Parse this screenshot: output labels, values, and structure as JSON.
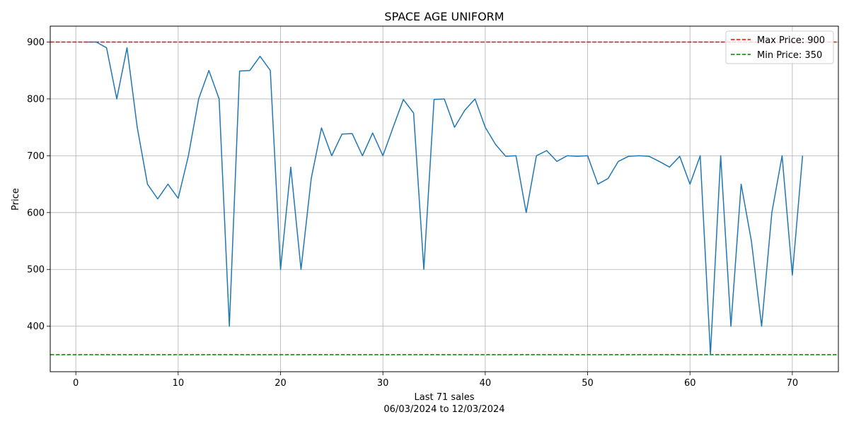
{
  "chart_data": {
    "type": "line",
    "title": "SPACE AGE UNIFORM",
    "xlabel_line1": "Last 71 sales",
    "xlabel_line2": "06/03/2024 to 12/03/2024",
    "ylabel": "Price",
    "xlim": [
      -2.5,
      74.5
    ],
    "ylim": [
      320,
      928
    ],
    "x_ticks": [
      0,
      10,
      20,
      30,
      40,
      50,
      60,
      70
    ],
    "y_ticks": [
      400,
      500,
      600,
      700,
      800,
      900
    ],
    "grid": true,
    "legend_position": "top-right",
    "series": [
      {
        "color": "#1f77b4",
        "x": [
          1,
          2,
          3,
          4,
          5,
          6,
          7,
          8,
          9,
          10,
          11,
          12,
          13,
          14,
          15,
          16,
          17,
          18,
          19,
          20,
          21,
          22,
          23,
          24,
          25,
          26,
          27,
          28,
          29,
          30,
          31,
          32,
          33,
          34,
          35,
          36,
          37,
          38,
          39,
          40,
          41,
          42,
          43,
          44,
          45,
          46,
          47,
          48,
          49,
          50,
          51,
          52,
          53,
          54,
          55,
          56,
          57,
          58,
          59,
          60,
          61,
          62,
          63,
          64,
          65,
          66,
          67,
          68,
          69,
          70,
          71
        ],
        "values": [
          900,
          900,
          890,
          800,
          890,
          750,
          650,
          624,
          650,
          625,
          700,
          800,
          850,
          800,
          400,
          849,
          850,
          875,
          850,
          500,
          680,
          500,
          660,
          749,
          700,
          738,
          739,
          700,
          740,
          700,
          750,
          799,
          775,
          500,
          799,
          800,
          750,
          780,
          800,
          750,
          720,
          699,
          700,
          600,
          700,
          709,
          690,
          700,
          699,
          700,
          650,
          660,
          690,
          699,
          700,
          699,
          690,
          680,
          699,
          650,
          700,
          350,
          700,
          400,
          650,
          550,
          400,
          600,
          700,
          490,
          700
        ]
      }
    ],
    "reference_lines": [
      {
        "name": "Max Price: 900",
        "value": 900,
        "color": "#ff0000",
        "style": "dashed"
      },
      {
        "name": "Min Price: 350",
        "value": 350,
        "color": "#008000",
        "style": "dashed"
      }
    ]
  }
}
